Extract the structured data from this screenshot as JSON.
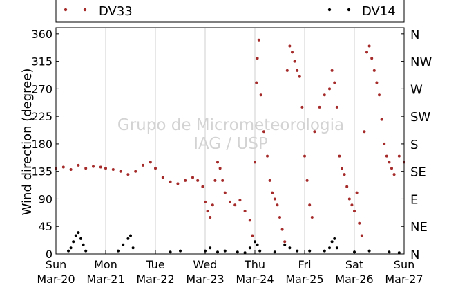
{
  "chart_data": {
    "type": "scatter",
    "ylabel": "Wind direction (degree)",
    "ylim": [
      0,
      370
    ],
    "yticks": [
      0,
      45,
      90,
      135,
      180,
      225,
      270,
      315,
      360
    ],
    "compass_ticks": [
      {
        "value": 0,
        "label": "N"
      },
      {
        "value": 45,
        "label": "NE"
      },
      {
        "value": 90,
        "label": "E"
      },
      {
        "value": 135,
        "label": "SE"
      },
      {
        "value": 180,
        "label": "S"
      },
      {
        "value": 225,
        "label": "SW"
      },
      {
        "value": 270,
        "label": "W"
      },
      {
        "value": 315,
        "label": "NW"
      },
      {
        "value": 360,
        "label": "N"
      }
    ],
    "xlim": [
      "2014-03-20",
      "2014-03-27"
    ],
    "xticks": [
      {
        "day": "Sun",
        "date": "Mar-20"
      },
      {
        "day": "Mon",
        "date": "Mar-21"
      },
      {
        "day": "Tue",
        "date": "Mar-22"
      },
      {
        "day": "Wed",
        "date": "Mar-23"
      },
      {
        "day": "Thu",
        "date": "Mar-24"
      },
      {
        "day": "Fri",
        "date": "Mar-25"
      },
      {
        "day": "Sat",
        "date": "Mar-26"
      },
      {
        "day": "Sun",
        "date": "Mar-27"
      }
    ],
    "grid": "vertical",
    "legend": "top",
    "watermark": [
      "Grupo de Micrometeorologia",
      "IAG / USP"
    ],
    "series": [
      {
        "name": "DV33",
        "color": "#a52a2a",
        "points": [
          [
            0.0,
            140
          ],
          [
            0.15,
            142
          ],
          [
            0.3,
            138
          ],
          [
            0.45,
            145
          ],
          [
            0.6,
            140
          ],
          [
            0.75,
            143
          ],
          [
            0.9,
            142
          ],
          [
            1.0,
            140
          ],
          [
            1.15,
            138
          ],
          [
            1.3,
            135
          ],
          [
            1.45,
            130
          ],
          [
            1.6,
            135
          ],
          [
            1.75,
            145
          ],
          [
            1.9,
            150
          ],
          [
            2.0,
            140
          ],
          [
            2.15,
            125
          ],
          [
            2.3,
            118
          ],
          [
            2.45,
            115
          ],
          [
            2.6,
            120
          ],
          [
            2.75,
            125
          ],
          [
            2.85,
            120
          ],
          [
            2.95,
            110
          ],
          [
            3.0,
            85
          ],
          [
            3.05,
            70
          ],
          [
            3.1,
            60
          ],
          [
            3.15,
            80
          ],
          [
            3.2,
            120
          ],
          [
            3.25,
            150
          ],
          [
            3.3,
            140
          ],
          [
            3.35,
            120
          ],
          [
            3.4,
            100
          ],
          [
            3.5,
            85
          ],
          [
            3.6,
            80
          ],
          [
            3.7,
            88
          ],
          [
            3.8,
            70
          ],
          [
            3.9,
            55
          ],
          [
            3.95,
            30
          ],
          [
            4.0,
            150
          ],
          [
            4.03,
            280
          ],
          [
            4.05,
            320
          ],
          [
            4.08,
            350
          ],
          [
            4.12,
            260
          ],
          [
            4.18,
            200
          ],
          [
            4.25,
            160
          ],
          [
            4.3,
            120
          ],
          [
            4.35,
            100
          ],
          [
            4.4,
            90
          ],
          [
            4.45,
            80
          ],
          [
            4.5,
            60
          ],
          [
            4.55,
            40
          ],
          [
            4.6,
            20
          ],
          [
            4.65,
            300
          ],
          [
            4.7,
            340
          ],
          [
            4.75,
            330
          ],
          [
            4.8,
            315
          ],
          [
            4.85,
            300
          ],
          [
            4.9,
            290
          ],
          [
            4.95,
            240
          ],
          [
            5.0,
            160
          ],
          [
            5.05,
            120
          ],
          [
            5.1,
            80
          ],
          [
            5.15,
            60
          ],
          [
            5.2,
            200
          ],
          [
            5.3,
            240
          ],
          [
            5.4,
            260
          ],
          [
            5.5,
            270
          ],
          [
            5.55,
            300
          ],
          [
            5.6,
            280
          ],
          [
            5.65,
            240
          ],
          [
            5.7,
            160
          ],
          [
            5.75,
            140
          ],
          [
            5.8,
            130
          ],
          [
            5.85,
            110
          ],
          [
            5.9,
            90
          ],
          [
            5.95,
            80
          ],
          [
            6.0,
            70
          ],
          [
            6.05,
            100
          ],
          [
            6.1,
            50
          ],
          [
            6.15,
            30
          ],
          [
            6.2,
            200
          ],
          [
            6.25,
            330
          ],
          [
            6.3,
            340
          ],
          [
            6.35,
            320
          ],
          [
            6.4,
            300
          ],
          [
            6.45,
            280
          ],
          [
            6.5,
            260
          ],
          [
            6.55,
            220
          ],
          [
            6.6,
            180
          ],
          [
            6.65,
            160
          ],
          [
            6.7,
            150
          ],
          [
            6.75,
            140
          ],
          [
            6.8,
            130
          ],
          [
            6.9,
            160
          ],
          [
            7.0,
            150
          ]
        ]
      },
      {
        "name": "DV14",
        "color": "#000000",
        "points": [
          [
            0.25,
            5
          ],
          [
            0.3,
            10
          ],
          [
            0.35,
            20
          ],
          [
            0.4,
            30
          ],
          [
            0.45,
            35
          ],
          [
            0.5,
            25
          ],
          [
            0.55,
            15
          ],
          [
            0.6,
            5
          ],
          [
            1.25,
            5
          ],
          [
            1.35,
            15
          ],
          [
            1.45,
            25
          ],
          [
            1.5,
            30
          ],
          [
            1.55,
            10
          ],
          [
            2.3,
            3
          ],
          [
            2.5,
            5
          ],
          [
            3.0,
            5
          ],
          [
            3.1,
            10
          ],
          [
            3.25,
            3
          ],
          [
            3.4,
            5
          ],
          [
            3.65,
            3
          ],
          [
            3.8,
            2
          ],
          [
            3.9,
            10
          ],
          [
            4.0,
            20
          ],
          [
            4.05,
            15
          ],
          [
            4.1,
            5
          ],
          [
            4.4,
            3
          ],
          [
            4.6,
            15
          ],
          [
            4.7,
            10
          ],
          [
            4.85,
            5
          ],
          [
            5.1,
            5
          ],
          [
            5.4,
            5
          ],
          [
            5.5,
            10
          ],
          [
            5.55,
            20
          ],
          [
            5.6,
            25
          ],
          [
            5.65,
            10
          ],
          [
            6.0,
            3
          ],
          [
            6.3,
            5
          ],
          [
            6.7,
            3
          ],
          [
            6.9,
            2
          ]
        ]
      }
    ]
  }
}
